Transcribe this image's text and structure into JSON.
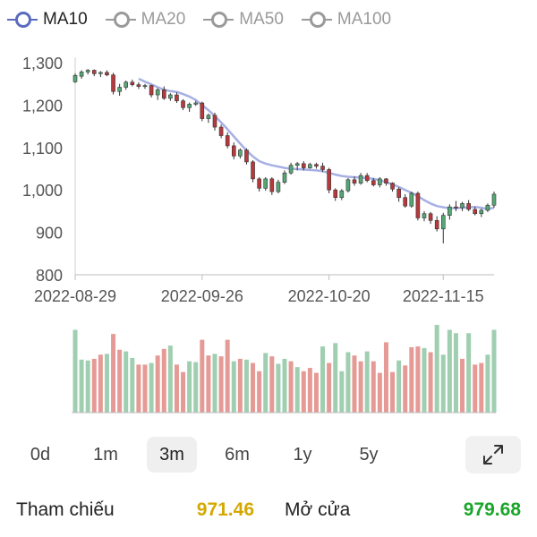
{
  "legend": [
    {
      "label": "MA10",
      "color": "#5a6bbf",
      "active": true
    },
    {
      "label": "MA20",
      "color": "#9a9a9a",
      "active": false
    },
    {
      "label": "MA50",
      "color": "#9a9a9a",
      "active": false
    },
    {
      "label": "MA100",
      "color": "#9a9a9a",
      "active": false
    }
  ],
  "chart_data": {
    "type": "candlestick",
    "y_ticks": [
      "1,300",
      "1,200",
      "1,100",
      "1,000",
      "900",
      "800"
    ],
    "y_tick_values": [
      1300,
      1200,
      1100,
      1000,
      900,
      800
    ],
    "ylim": [
      800,
      1300
    ],
    "x_tick_labels": [
      {
        "label": "2022-08-29",
        "index": 0
      },
      {
        "label": "2022-09-26",
        "index": 20
      },
      {
        "label": "2022-10-20",
        "index": 40
      },
      {
        "label": "2022-11-15",
        "index": 58
      }
    ],
    "colors": {
      "up": "#56a776",
      "down": "#b8383c",
      "ma10": "#a7b0e4",
      "vol_up": "#9fcfb0",
      "vol_down": "#e59a96"
    },
    "ohlc": [
      [
        1255,
        1275,
        1252,
        1270
      ],
      [
        1268,
        1282,
        1262,
        1278
      ],
      [
        1278,
        1285,
        1272,
        1282
      ],
      [
        1282,
        1284,
        1268,
        1274
      ],
      [
        1274,
        1280,
        1266,
        1277
      ],
      [
        1277,
        1282,
        1268,
        1271
      ],
      [
        1271,
        1276,
        1225,
        1232
      ],
      [
        1232,
        1250,
        1222,
        1242
      ],
      [
        1242,
        1258,
        1236,
        1254
      ],
      [
        1254,
        1260,
        1244,
        1248
      ],
      [
        1248,
        1254,
        1238,
        1244
      ],
      [
        1244,
        1250,
        1238,
        1246
      ],
      [
        1246,
        1248,
        1218,
        1224
      ],
      [
        1224,
        1240,
        1212,
        1236
      ],
      [
        1236,
        1244,
        1212,
        1216
      ],
      [
        1216,
        1228,
        1210,
        1224
      ],
      [
        1224,
        1230,
        1205,
        1210
      ],
      [
        1210,
        1214,
        1188,
        1194
      ],
      [
        1194,
        1206,
        1184,
        1202
      ],
      [
        1202,
        1210,
        1198,
        1205
      ],
      [
        1205,
        1208,
        1162,
        1168
      ],
      [
        1168,
        1180,
        1158,
        1176
      ],
      [
        1176,
        1182,
        1140,
        1148
      ],
      [
        1148,
        1154,
        1122,
        1128
      ],
      [
        1128,
        1136,
        1098,
        1104
      ],
      [
        1104,
        1112,
        1072,
        1080
      ],
      [
        1080,
        1098,
        1074,
        1094
      ],
      [
        1094,
        1098,
        1060,
        1066
      ],
      [
        1066,
        1070,
        1018,
        1026
      ],
      [
        1026,
        1030,
        996,
        1004
      ],
      [
        1004,
        1030,
        998,
        1026
      ],
      [
        1026,
        1030,
        988,
        996
      ],
      [
        996,
        1024,
        992,
        1018
      ],
      [
        1018,
        1046,
        1014,
        1040
      ],
      [
        1040,
        1064,
        1036,
        1058
      ],
      [
        1058,
        1066,
        1046,
        1062
      ],
      [
        1062,
        1068,
        1046,
        1052
      ],
      [
        1052,
        1064,
        1050,
        1060
      ],
      [
        1060,
        1064,
        1050,
        1056
      ],
      [
        1056,
        1064,
        1042,
        1048
      ],
      [
        1048,
        1052,
        992,
        1000
      ],
      [
        1000,
        1004,
        974,
        982
      ],
      [
        982,
        1002,
        976,
        998
      ],
      [
        998,
        1028,
        994,
        1024
      ],
      [
        1024,
        1032,
        1010,
        1016
      ],
      [
        1016,
        1040,
        1012,
        1034
      ],
      [
        1034,
        1040,
        1018,
        1022
      ],
      [
        1022,
        1028,
        1008,
        1012
      ],
      [
        1012,
        1030,
        1006,
        1026
      ],
      [
        1026,
        1028,
        1010,
        1016
      ],
      [
        1016,
        1018,
        996,
        1002
      ],
      [
        1002,
        1006,
        972,
        982
      ],
      [
        982,
        990,
        958,
        962
      ],
      [
        962,
        996,
        958,
        992
      ],
      [
        992,
        996,
        928,
        934
      ],
      [
        934,
        950,
        926,
        944
      ],
      [
        944,
        948,
        920,
        928
      ],
      [
        928,
        938,
        902,
        908
      ],
      [
        908,
        946,
        874,
        940
      ],
      [
        940,
        966,
        930,
        960
      ],
      [
        960,
        974,
        950,
        958
      ],
      [
        958,
        972,
        950,
        968
      ],
      [
        968,
        976,
        950,
        954
      ],
      [
        954,
        960,
        940,
        944
      ],
      [
        944,
        956,
        936,
        952
      ],
      [
        952,
        968,
        948,
        964
      ],
      [
        964,
        996,
        958,
        990
      ]
    ],
    "ma10": [
      [
        10,
        1262
      ],
      [
        11,
        1255
      ],
      [
        12,
        1249
      ],
      [
        13,
        1242
      ],
      [
        14,
        1236
      ],
      [
        15,
        1233
      ],
      [
        16,
        1231
      ],
      [
        17,
        1226
      ],
      [
        18,
        1220
      ],
      [
        19,
        1212
      ],
      [
        20,
        1200
      ],
      [
        21,
        1188
      ],
      [
        22,
        1174
      ],
      [
        23,
        1159
      ],
      [
        24,
        1143
      ],
      [
        25,
        1126
      ],
      [
        26,
        1109
      ],
      [
        27,
        1093
      ],
      [
        28,
        1079
      ],
      [
        29,
        1068
      ],
      [
        30,
        1062
      ],
      [
        31,
        1058
      ],
      [
        32,
        1055
      ],
      [
        33,
        1052
      ],
      [
        34,
        1050
      ],
      [
        35,
        1049
      ],
      [
        36,
        1048
      ],
      [
        37,
        1047
      ],
      [
        38,
        1046
      ],
      [
        39,
        1044
      ],
      [
        40,
        1040
      ],
      [
        41,
        1036
      ],
      [
        42,
        1033
      ],
      [
        43,
        1031
      ],
      [
        44,
        1030
      ],
      [
        45,
        1029
      ],
      [
        46,
        1028
      ],
      [
        47,
        1026
      ],
      [
        48,
        1023
      ],
      [
        49,
        1018
      ],
      [
        50,
        1013
      ],
      [
        51,
        1007
      ],
      [
        52,
        1000
      ],
      [
        53,
        993
      ],
      [
        54,
        985
      ],
      [
        55,
        976
      ],
      [
        56,
        968
      ],
      [
        57,
        962
      ],
      [
        58,
        959
      ],
      [
        59,
        957
      ],
      [
        60,
        957
      ],
      [
        61,
        958
      ],
      [
        62,
        959
      ],
      [
        63,
        960
      ],
      [
        64,
        958
      ],
      [
        65,
        955
      ],
      [
        66,
        958
      ]
    ],
    "volume": [
      100,
      64,
      63,
      65,
      70,
      71,
      95,
      76,
      74,
      66,
      58,
      58,
      60,
      69,
      77,
      81,
      58,
      49,
      62,
      61,
      88,
      69,
      71,
      68,
      88,
      62,
      65,
      64,
      60,
      50,
      72,
      68,
      59,
      65,
      62,
      55,
      50,
      54,
      48,
      80,
      60,
      84,
      50,
      73,
      69,
      62,
      74,
      62,
      48,
      85,
      49,
      63,
      57,
      79,
      80,
      78,
      73,
      106,
      70,
      100,
      96,
      65,
      96,
      58,
      60,
      70,
      100
    ],
    "volume_up": [
      true,
      true,
      true,
      false,
      false,
      true,
      false,
      false,
      true,
      true,
      false,
      false,
      true,
      false,
      false,
      true,
      false,
      false,
      true,
      true,
      false,
      false,
      true,
      false,
      false,
      true,
      false,
      true,
      false,
      false,
      true,
      false,
      true,
      true,
      false,
      true,
      false,
      false,
      false,
      true,
      false,
      true,
      true,
      true,
      false,
      false,
      true,
      false,
      false,
      false,
      false,
      true,
      false,
      false,
      false,
      true,
      false,
      true,
      true,
      true,
      true,
      false,
      true,
      false,
      false,
      true,
      true
    ]
  },
  "ranges": [
    {
      "label": "0d",
      "active": false
    },
    {
      "label": "1m",
      "active": false
    },
    {
      "label": "3m",
      "active": true
    },
    {
      "label": "6m",
      "active": false
    },
    {
      "label": "1y",
      "active": false
    },
    {
      "label": "5y",
      "active": false
    }
  ],
  "footer": {
    "ref_label": "Tham chiếu",
    "ref_value": "971.46",
    "ref_color": "#d4a800",
    "open_label": "Mở cửa",
    "open_value": "979.68",
    "open_color": "#1aa52a"
  }
}
